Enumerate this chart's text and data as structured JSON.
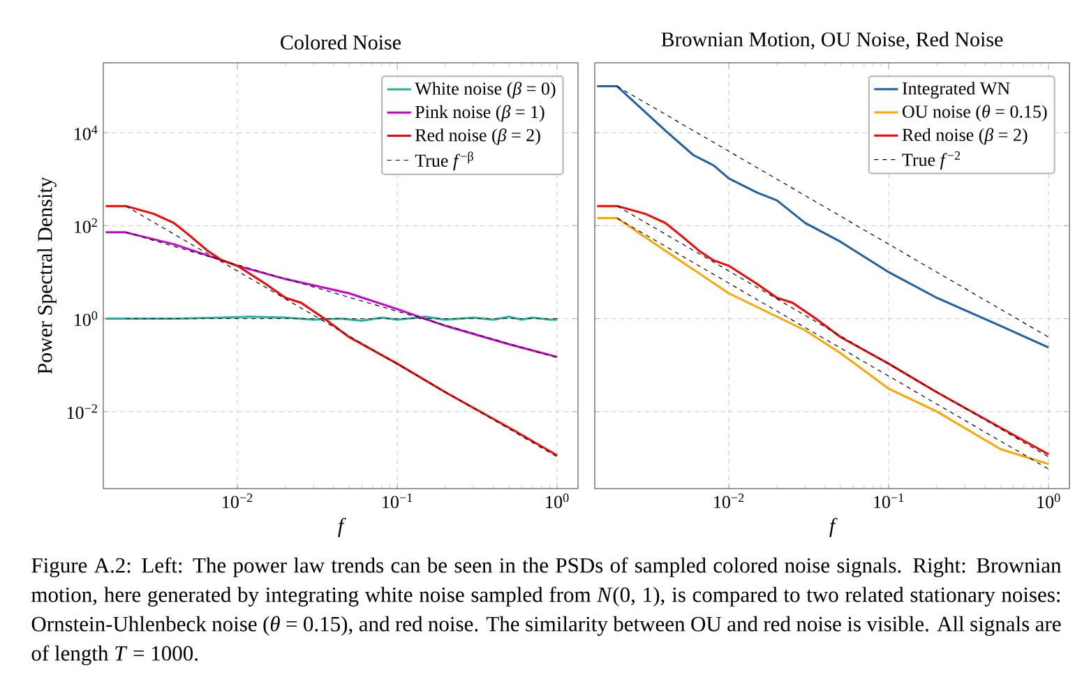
{
  "chart_data": [
    {
      "type": "line",
      "title": "Colored Noise",
      "xlabel": "f",
      "ylabel": "Power Spectral Density",
      "log": "xy",
      "grid": true,
      "legend": "top right",
      "marker": "none",
      "xlim": [
        0.00145,
        1.35
      ],
      "ylim": [
        0.00022,
        320000
      ],
      "xticks": [
        {
          "value": 0.01,
          "label": "10$^{−2}$"
        },
        {
          "value": 0.1,
          "label": "10$^{−1}$"
        },
        {
          "value": 1,
          "label": "10$^{0}$"
        }
      ],
      "yticks": [
        {
          "value": 0.01,
          "label": "10$^{−2}$"
        },
        {
          "value": 1,
          "label": "10$^{0}$"
        },
        {
          "value": 100,
          "label": "10$^{2}$"
        },
        {
          "value": 10000,
          "label": "10$^{4}$"
        }
      ],
      "series": [
        {
          "name": "White noise (*β* = 0)",
          "color": "#20b2a0",
          "x": [
            0.0015,
            0.002,
            0.004,
            0.008,
            0.012,
            0.02,
            0.03,
            0.045,
            0.06,
            0.08,
            0.1,
            0.15,
            0.2,
            0.3,
            0.4,
            0.5,
            0.6,
            0.7,
            0.8,
            0.9,
            1
          ],
          "values": [
            1,
            1,
            1,
            1.05,
            1.1,
            1.05,
            0.95,
            1.0,
            0.9,
            1.05,
            0.95,
            1.1,
            0.95,
            1.05,
            0.95,
            1.1,
            0.95,
            1.05,
            1.0,
            0.95,
            0.95
          ]
        },
        {
          "name": "Pink noise (*β* = 1)",
          "color": "#cc00cc",
          "x": [
            0.0015,
            0.002,
            0.004,
            0.008,
            0.01,
            0.02,
            0.05,
            0.1,
            0.2,
            0.5,
            1
          ],
          "values": [
            72,
            72,
            40,
            18,
            13.7,
            7.1,
            3.5,
            1.6,
            0.7,
            0.28,
            0.15
          ]
        },
        {
          "name": "Red noise (*β* = 2)",
          "color": "#ff0000",
          "x": [
            0.0015,
            0.002,
            0.003,
            0.004,
            0.005,
            0.0065,
            0.008,
            0.01,
            0.015,
            0.02,
            0.025,
            0.035,
            0.05,
            0.1,
            0.2,
            0.5,
            1
          ],
          "values": [
            265,
            265,
            180,
            115,
            62,
            29,
            18,
            13.7,
            5.6,
            2.8,
            2.2,
            1,
            0.4,
            0.107,
            0.026,
            0.0045,
            0.00114
          ]
        },
        {
          "name": "True *f*$^{−β}$",
          "color": "#000000",
          "line_style": "dashed",
          "x": [
            0.002,
            1
          ],
          "values": [
            265,
            0.00106
          ]
        },
        {
          "color": "#000000",
          "line_style": "dashed",
          "x": [
            0.002,
            1
          ],
          "values": [
            72,
            0.144
          ]
        },
        {
          "color": "#000000",
          "line_style": "dashed",
          "x": [
            0.002,
            1
          ],
          "values": [
            1,
            1
          ]
        }
      ],
      "annotations": [
        "Figure A.2: Left: The power law trends can be seen in the PSDs of sampled colored noise signals. Right:  Brownian motion, here generated by integrating white noise sampled from *N*(0, 1), is compared to two related stationary noises: Ornstein-Uhlenbeck noise (*θ* = 0.15), and red noise. The similarity between OU and red noise is visible. All signals are of length *T* = 1000."
      ]
    },
    {
      "type": "line",
      "title": "Brownian Motion, OU Noise, Red Noise",
      "xlabel": "f",
      "log": "xy",
      "grid": true,
      "legend": "top right",
      "marker": "none",
      "tick_labels": "x",
      "xlim": [
        0.00145,
        1.35
      ],
      "ylim": [
        0.00022,
        320000
      ],
      "xticks": [
        {
          "value": 0.01,
          "label": "10$^{−2}$"
        },
        {
          "value": 0.1,
          "label": "10$^{−1}$"
        },
        {
          "value": 1,
          "label": "10$^{0}$"
        }
      ],
      "yticks": [
        {
          "value": 0.01,
          "label": null
        },
        {
          "value": 1,
          "label": null
        },
        {
          "value": 100,
          "label": null
        },
        {
          "value": 10000,
          "label": null
        }
      ],
      "series": [
        {
          "name": "Integrated WN",
          "color": "#1f5fa8",
          "x": [
            0.0015,
            0.002,
            0.004,
            0.006,
            0.008,
            0.01,
            0.015,
            0.02,
            0.03,
            0.05,
            0.1,
            0.2,
            0.5,
            1
          ],
          "values": [
            100000,
            100000,
            11200,
            3300,
            2000,
            1040,
            516,
            350,
            115,
            45,
            10,
            2.8,
            0.7,
            0.24
          ]
        },
        {
          "name": "OU noise (*θ* = 0.15)",
          "color": "#ffa500",
          "x": [
            0.0015,
            0.002,
            0.004,
            0.01,
            0.02,
            0.03,
            0.05,
            0.1,
            0.2,
            0.5,
            1
          ],
          "values": [
            145,
            145,
            29,
            3.5,
            1.1,
            0.56,
            0.18,
            0.031,
            0.01,
            0.00155,
            0.00074
          ]
        },
        {
          "name": "Red noise (*β* = 2)",
          "color": "#ff0000",
          "x": [
            0.0015,
            0.002,
            0.003,
            0.004,
            0.005,
            0.0065,
            0.008,
            0.01,
            0.015,
            0.02,
            0.025,
            0.035,
            0.05,
            0.1,
            0.2,
            0.5,
            1
          ],
          "values": [
            265,
            265,
            180,
            115,
            62,
            29,
            18,
            13.7,
            5.6,
            2.8,
            2.2,
            1,
            0.4,
            0.107,
            0.026,
            0.0045,
            0.0012
          ]
        },
        {
          "name": "True *f*$^{−2}$",
          "color": "#000000",
          "line_style": "dashed",
          "x": [
            0.002,
            1
          ],
          "values": [
            100000,
            0.4
          ]
        },
        {
          "color": "#000000",
          "line_style": "dashed",
          "x": [
            0.002,
            1
          ],
          "values": [
            265,
            0.00106
          ]
        },
        {
          "color": "#000000",
          "line_style": "dashed",
          "x": [
            0.002,
            1
          ],
          "values": [
            145,
            0.00058
          ]
        }
      ]
    }
  ]
}
